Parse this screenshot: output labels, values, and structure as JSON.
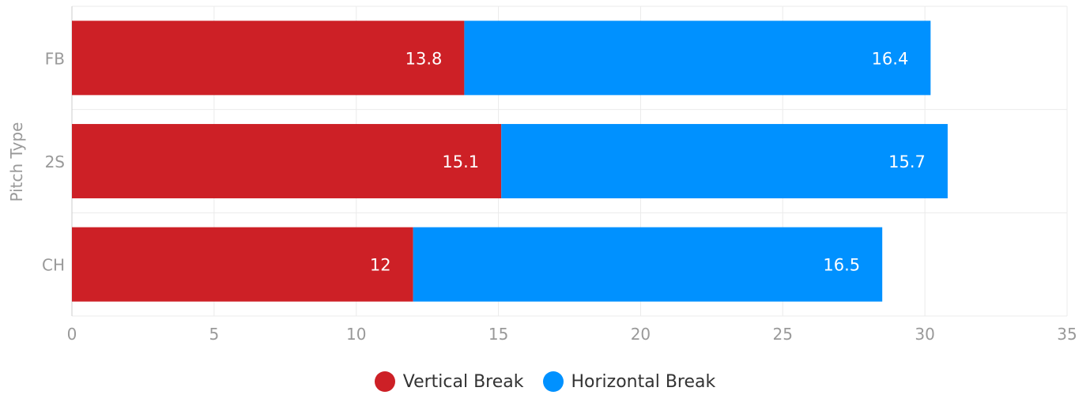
{
  "chart_data": {
    "type": "bar",
    "orientation": "horizontal",
    "stacked": true,
    "title": "",
    "xlabel": "",
    "ylabel": "Pitch Type",
    "categories": [
      "FB",
      "2S",
      "CH"
    ],
    "series": [
      {
        "name": "Vertical Break",
        "values": [
          13.8,
          15.1,
          12
        ],
        "color": "#cd2026"
      },
      {
        "name": "Horizontal Break",
        "values": [
          16.4,
          15.7,
          16.5
        ],
        "color": "#0091ff"
      }
    ],
    "data_labels": [
      [
        "13.8",
        "15.1",
        "12"
      ],
      [
        "16.4",
        "15.7",
        "16.5"
      ]
    ],
    "xlim": [
      0,
      35
    ],
    "xticks": [
      0,
      5,
      10,
      15,
      20,
      25,
      30,
      35
    ],
    "grid": true,
    "legend_position": "bottom-center"
  }
}
